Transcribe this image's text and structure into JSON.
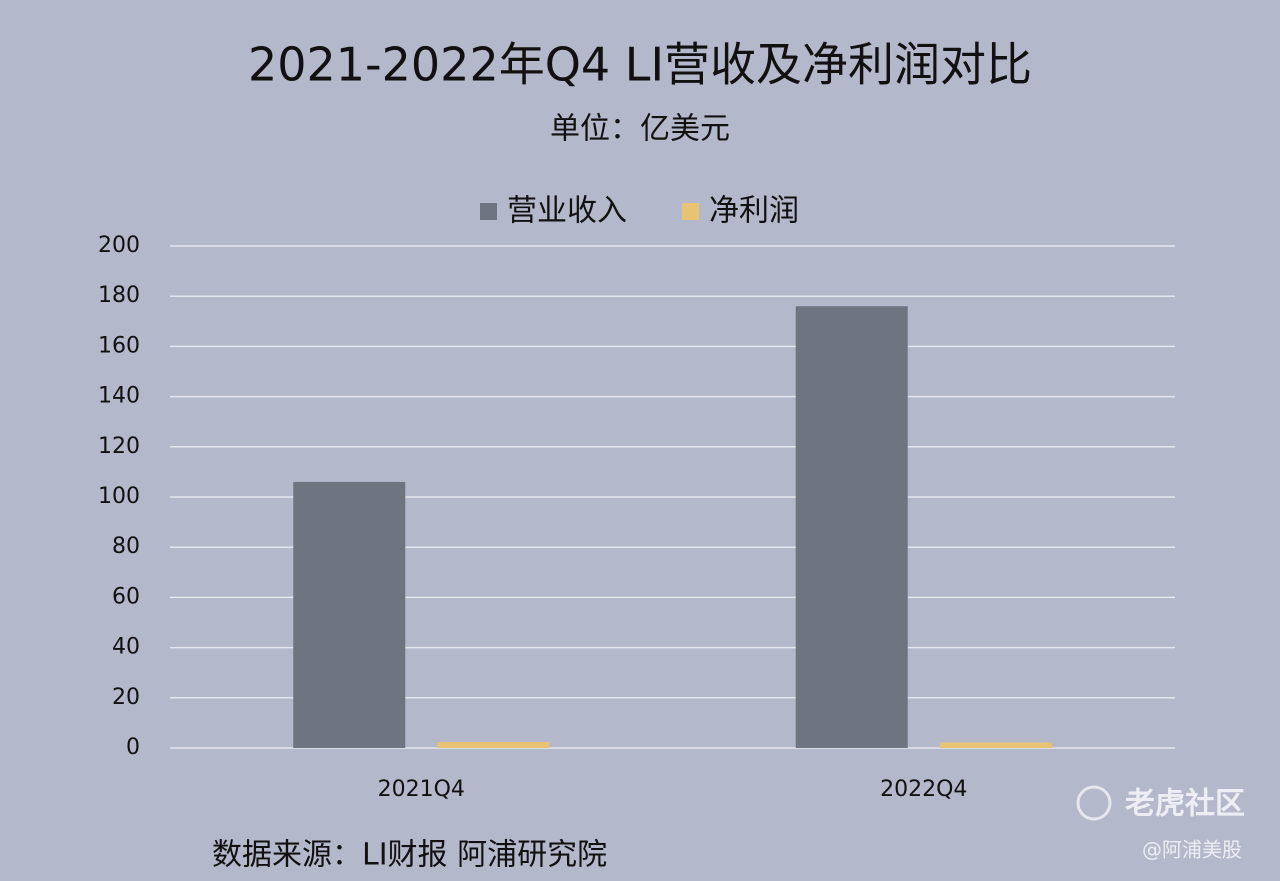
{
  "chart_data": {
    "type": "bar",
    "title": "2021-2022年Q4 LI营收及净利润对比",
    "subtitle": "单位：亿美元",
    "categories": [
      "2021Q4",
      "2022Q4"
    ],
    "series": [
      {
        "name": "营业收入",
        "color": "#6e7480",
        "values": [
          106,
          176
        ]
      },
      {
        "name": "净利润",
        "color": "#e8c372",
        "values": [
          2.4,
          2.2
        ]
      }
    ],
    "ylim": [
      0,
      200
    ],
    "yticks": [
      0,
      20,
      40,
      60,
      80,
      100,
      120,
      140,
      160,
      180,
      200
    ],
    "grid": true,
    "legend": "top",
    "source": "数据来源：LI财报 阿浦研究院",
    "watermark": [
      "老虎社区",
      "@阿浦美股"
    ]
  }
}
